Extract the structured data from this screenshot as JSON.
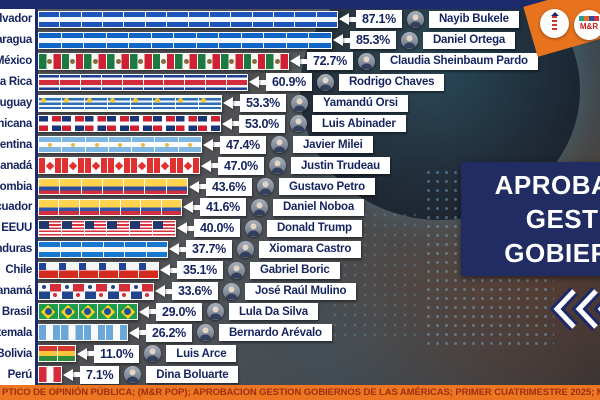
{
  "title_box": {
    "lines": [
      "APROBACIÓN",
      "GESTIÓN",
      "GOBIERNOS"
    ]
  },
  "branding": {
    "logo_text": "M&R"
  },
  "footer": {
    "text": "PTICO DE OPINIÓN PÚBLICA; (M&R POP); APROBACION GESTION GOBIERNOS DE LAS AMÉRICAS; PRIMER CUATRIMESTRE 2025; M&R CONSULTO"
  },
  "colors": {
    "navy": "#1b2a6b",
    "title_bg": "#212c63",
    "footer_orange": "#ed7623",
    "footer_text": "#9e2f10"
  },
  "chart_data": {
    "type": "bar",
    "orientation": "horizontal",
    "unit": "%",
    "xlim": [
      0,
      100
    ],
    "title": "APROBACIÓN GESTIÓN GOBIERNOS",
    "rows": [
      {
        "country": "El Salvador",
        "leader": "Nayib Bukele",
        "value": 87.1,
        "label": "87.1%",
        "flag": "sv"
      },
      {
        "country": "Nicaragua",
        "leader": "Daniel Ortega",
        "value": 85.3,
        "label": "85.3%",
        "flag": "ni"
      },
      {
        "country": "México",
        "leader": "Claudia Sheinbaum Pardo",
        "value": 72.7,
        "label": "72.7%",
        "flag": "mx"
      },
      {
        "country": "Costa Rica",
        "leader": "Rodrigo Chaves",
        "value": 60.9,
        "label": "60.9%",
        "flag": "cr"
      },
      {
        "country": "Uruguay",
        "leader": "Yamandú Orsi",
        "value": 53.3,
        "label": "53.3%",
        "flag": "uy"
      },
      {
        "country": "Dominicana",
        "leader": "Luis Abinader",
        "value": 53.0,
        "label": "53.0%",
        "flag": "do"
      },
      {
        "country": "Argentina",
        "leader": "Javier Milei",
        "value": 47.4,
        "label": "47.4%",
        "flag": "ar"
      },
      {
        "country": "Canadá",
        "leader": "Justin Trudeau",
        "value": 47.0,
        "label": "47.0%",
        "flag": "ca"
      },
      {
        "country": "Colombia",
        "leader": "Gustavo Petro",
        "value": 43.6,
        "label": "43.6%",
        "flag": "co"
      },
      {
        "country": "Ecuador",
        "leader": "Daniel Noboa",
        "value": 41.6,
        "label": "41.6%",
        "flag": "ec"
      },
      {
        "country": "EEUU",
        "leader": "Donald Trump",
        "value": 40.0,
        "label": "40.0%",
        "flag": "us"
      },
      {
        "country": "Honduras",
        "leader": "Xiomara Castro",
        "value": 37.7,
        "label": "37.7%",
        "flag": "hn"
      },
      {
        "country": "Chile",
        "leader": "Gabriel Boric",
        "value": 35.1,
        "label": "35.1%",
        "flag": "cl"
      },
      {
        "country": "Panamá",
        "leader": "José Raúl Mulino",
        "value": 33.6,
        "label": "33.6%",
        "flag": "pa"
      },
      {
        "country": "Brasil",
        "leader": "Lula Da Silva",
        "value": 29.0,
        "label": "29.0%",
        "flag": "br"
      },
      {
        "country": "Guatemala",
        "leader": "Bernardo Arévalo",
        "value": 26.2,
        "label": "26.2%",
        "flag": "gt"
      },
      {
        "country": "Bolivia",
        "leader": "Luis Arce",
        "value": 11.0,
        "label": "11.0%",
        "flag": "bo"
      },
      {
        "country": "Perú",
        "leader": "Dina Boluarte",
        "value": 7.1,
        "label": "7.1%",
        "flag": "pe"
      }
    ]
  }
}
